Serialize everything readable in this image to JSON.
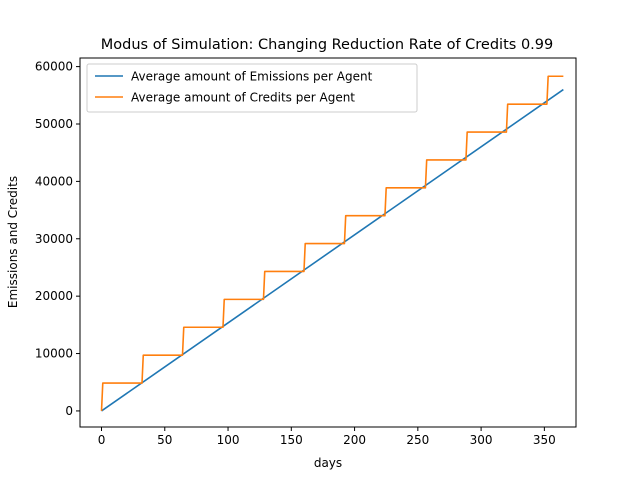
{
  "chart_data": {
    "type": "line",
    "title": "Modus of Simulation: Changing Reduction Rate of Credits 0.99",
    "xlabel": "days",
    "ylabel": "Emissions and Credits",
    "xlim": [
      -17,
      375
    ],
    "ylim": [
      -2800,
      61500
    ],
    "xticks": [
      0,
      50,
      100,
      150,
      200,
      250,
      300,
      350
    ],
    "yticks": [
      0,
      10000,
      20000,
      30000,
      40000,
      50000,
      60000
    ],
    "grid": false,
    "legend_position": "upper left",
    "series": [
      {
        "name": "Average amount of Emissions per Agent",
        "color": "#1f77b4",
        "x": [
          0,
          365
        ],
        "y": [
          0,
          56000
        ]
      },
      {
        "name": "Average amount of Credits per Agent",
        "color": "#ff7f0e",
        "x": [
          0,
          1,
          32,
          33,
          64,
          65,
          96,
          97,
          128,
          129,
          160,
          161,
          192,
          193,
          224,
          225,
          256,
          257,
          288,
          289,
          320,
          321,
          352,
          353,
          365
        ],
        "y": [
          0,
          4860,
          4860,
          9720,
          9720,
          14580,
          14580,
          19440,
          19440,
          24300,
          24300,
          29160,
          29160,
          34020,
          34020,
          38880,
          38880,
          43740,
          43740,
          48600,
          48600,
          53460,
          53460,
          58320,
          58320
        ]
      }
    ]
  }
}
